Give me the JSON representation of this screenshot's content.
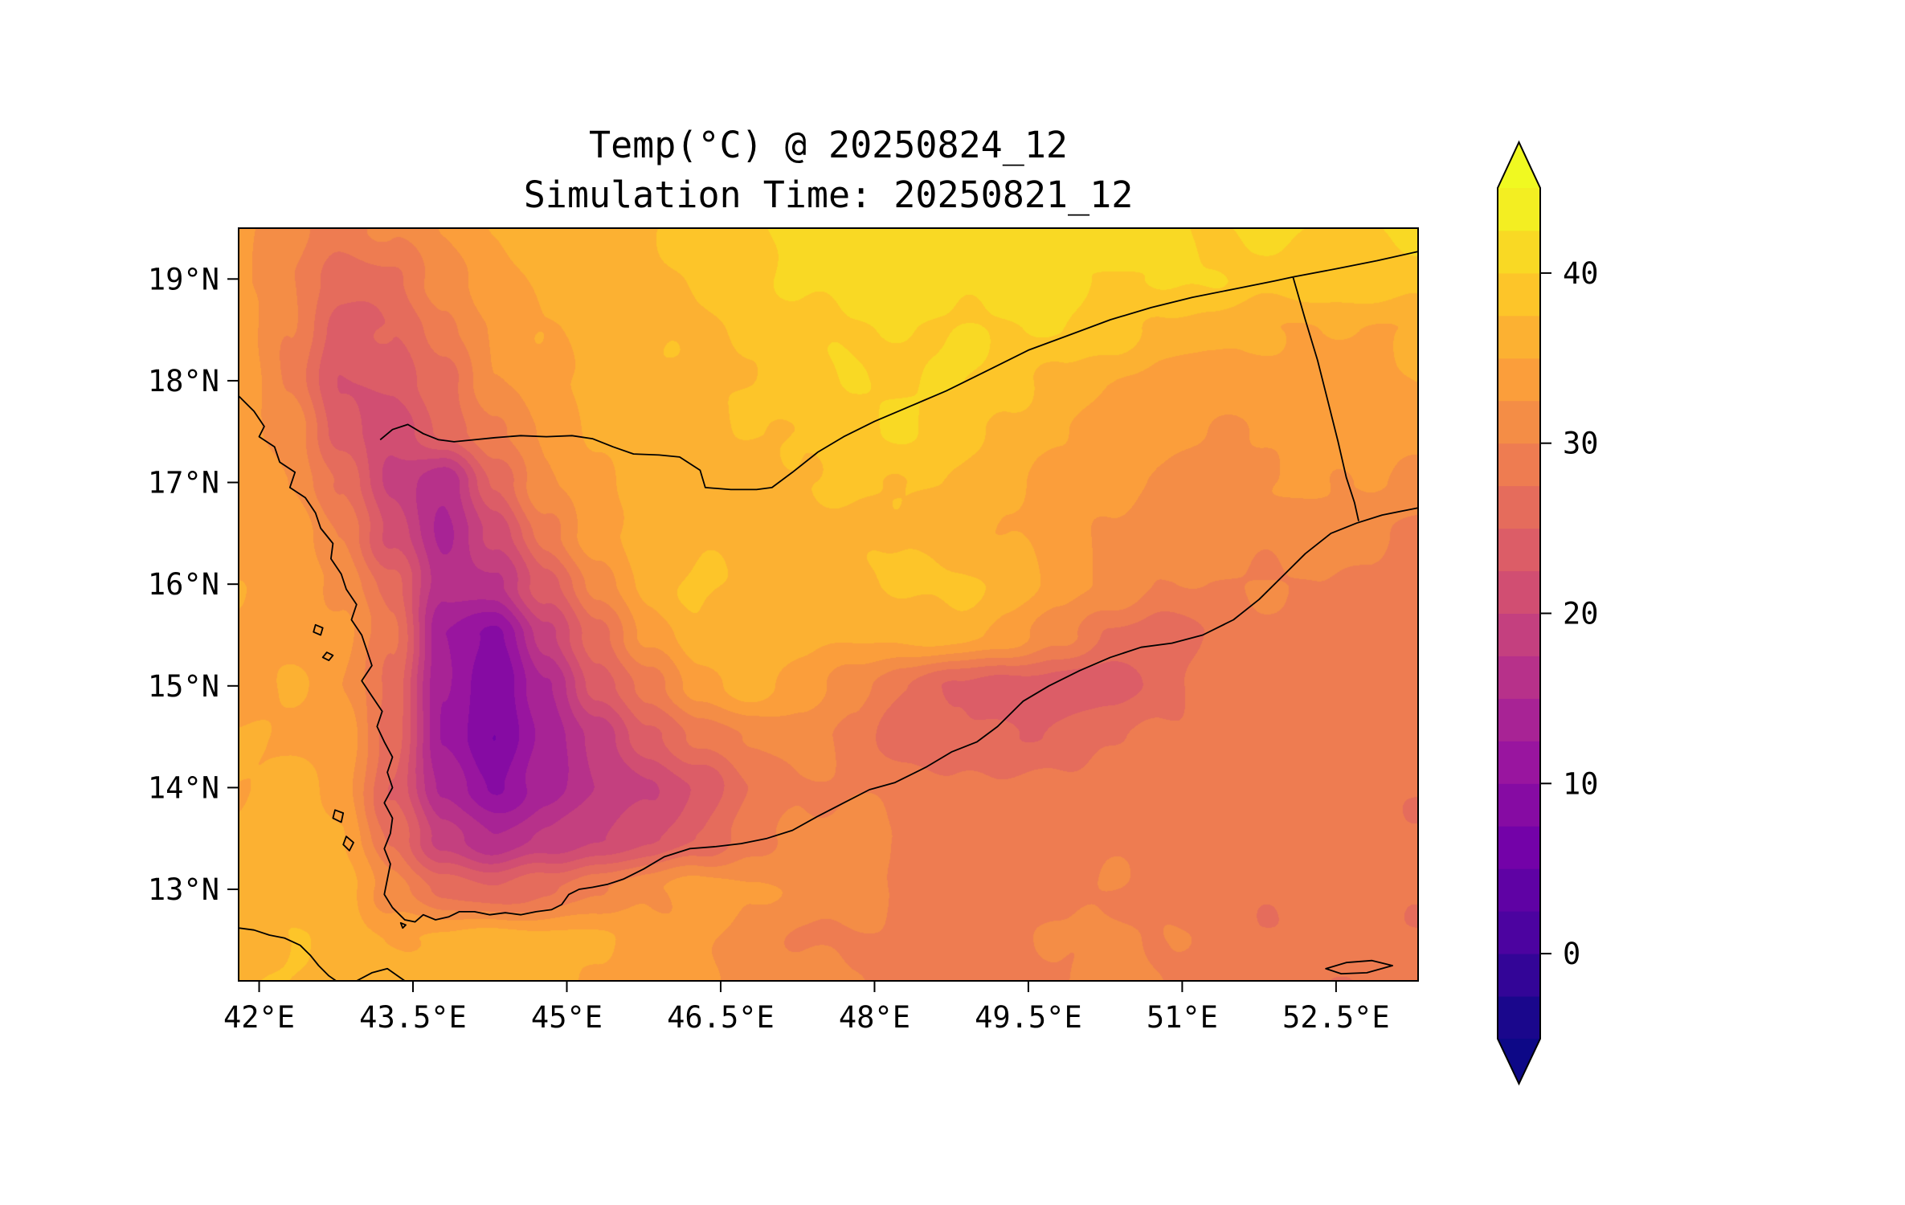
{
  "chart_data": {
    "type": "heatmap",
    "title": "Temp(°C) @ 20250824_12",
    "subtitle": "Simulation Time: 20250821_12",
    "variable": "Temperature",
    "units": "°C",
    "lon_range": [
      41.8,
      53.3
    ],
    "lat_range": [
      12.1,
      19.5
    ],
    "x_axis": {
      "ticks": [
        42,
        43.5,
        45,
        46.5,
        48,
        49.5,
        51,
        52.5
      ],
      "labels": [
        "42°E",
        "43.5°E",
        "45°E",
        "46.5°E",
        "48°E",
        "49.5°E",
        "51°E",
        "52.5°E"
      ]
    },
    "y_axis": {
      "ticks": [
        13,
        14,
        15,
        16,
        17,
        18,
        19
      ],
      "labels": [
        "13°N",
        "14°N",
        "15°N",
        "16°N",
        "17°N",
        "18°N",
        "19°N"
      ]
    },
    "colorbar": {
      "colormap": "plasma",
      "extend": "both",
      "vmin": -5,
      "vmax": 45,
      "band_step": 2.5,
      "tick_values": [
        40,
        30,
        20,
        10,
        0
      ],
      "tick_labels": [
        "40",
        "30",
        "20",
        "10",
        "0"
      ],
      "anchors": [
        "#0d0887",
        "#46039f",
        "#7201a8",
        "#9c179e",
        "#bd3786",
        "#d8576b",
        "#ed7953",
        "#fb9f3a",
        "#fdca26",
        "#f0f921"
      ]
    },
    "grid": {
      "lons": [
        41.8,
        42.3,
        42.8,
        43.3,
        43.8,
        44.3,
        44.8,
        45.3,
        45.8,
        46.3,
        46.8,
        47.3,
        47.8,
        48.3,
        48.8,
        49.3,
        49.8,
        50.3,
        50.8,
        51.3,
        51.8,
        52.3,
        52.8,
        53.3
      ],
      "lats": [
        19.5,
        19.0,
        18.5,
        18.0,
        17.5,
        17.0,
        16.5,
        16.0,
        15.5,
        15.0,
        14.5,
        14.0,
        13.5,
        13.0,
        12.5,
        12.1
      ],
      "temps": [
        [
          33,
          31,
          29,
          30,
          33,
          35,
          36,
          37,
          37,
          38,
          40,
          41,
          41,
          41,
          41,
          41,
          41,
          41,
          41,
          40,
          40,
          40,
          40,
          40
        ],
        [
          33,
          30,
          26,
          27,
          31,
          34,
          36,
          36,
          37,
          38,
          39,
          41,
          41,
          41,
          41,
          41,
          40,
          40,
          40,
          40,
          39,
          39,
          39,
          39
        ],
        [
          34,
          30,
          24,
          25,
          29,
          33,
          35,
          36,
          37,
          37,
          38,
          39,
          40,
          40,
          40,
          40,
          40,
          39,
          37,
          36,
          35,
          35,
          35,
          35
        ],
        [
          34,
          30,
          22,
          23,
          27,
          32,
          34,
          36,
          37,
          37,
          38,
          39,
          40,
          40,
          40,
          39,
          37,
          35,
          34,
          34,
          34,
          34,
          34,
          35
        ],
        [
          34,
          31,
          24,
          21,
          25,
          30,
          33,
          35,
          36,
          37,
          37,
          38,
          39,
          40,
          39,
          37,
          35,
          34,
          33,
          32,
          33,
          33,
          34,
          34
        ],
        [
          34,
          33,
          27,
          19,
          16,
          25,
          32,
          35,
          36,
          37,
          37,
          37,
          38,
          38,
          37,
          36,
          34,
          33,
          32,
          32,
          32,
          33,
          33,
          31
        ],
        [
          35,
          34,
          30,
          22,
          14,
          21,
          29,
          34,
          36,
          37,
          36,
          36,
          37,
          37,
          36,
          35,
          34,
          32,
          31,
          31,
          31,
          32,
          31,
          29
        ],
        [
          35,
          34,
          32,
          26,
          16,
          17,
          24,
          31,
          36,
          38,
          37,
          36,
          37,
          38,
          38,
          37,
          34,
          32,
          30,
          30,
          30,
          30,
          29,
          28
        ],
        [
          34,
          34,
          33,
          28,
          13,
          9,
          19,
          27,
          33,
          37,
          37,
          36,
          35,
          36,
          36,
          34,
          31,
          27,
          26,
          28,
          29,
          29,
          28,
          28
        ],
        [
          34,
          35,
          33,
          27,
          12,
          8,
          15,
          23,
          29,
          34,
          36,
          34,
          31,
          27,
          25,
          24,
          23,
          24,
          26,
          28,
          29,
          29,
          28,
          28
        ],
        [
          35,
          35,
          34,
          26,
          13,
          7,
          13,
          19,
          24,
          28,
          31,
          31,
          29,
          26,
          25,
          25,
          26,
          27,
          28,
          29,
          29,
          29,
          28,
          28
        ],
        [
          35,
          36,
          34,
          25,
          14,
          10,
          14,
          17,
          20,
          23,
          27,
          30,
          30,
          29,
          28,
          28,
          28,
          29,
          29,
          29,
          29,
          28,
          28,
          28
        ],
        [
          36,
          36,
          35,
          27,
          19,
          15,
          18,
          20,
          22,
          25,
          29,
          31,
          31,
          30,
          29,
          29,
          29,
          29,
          29,
          29,
          28,
          28,
          28,
          28
        ],
        [
          36,
          37,
          36,
          31,
          27,
          25,
          27,
          30,
          32,
          34,
          33,
          32,
          31,
          30,
          29,
          29,
          29,
          30,
          29,
          28,
          28,
          28,
          28,
          28
        ],
        [
          37,
          37,
          37,
          35,
          35,
          37,
          36,
          35,
          34,
          33,
          31,
          30,
          30,
          29,
          29,
          29,
          30,
          31,
          30,
          29,
          28,
          28,
          28,
          28
        ],
        [
          37,
          38,
          37,
          36,
          37,
          37,
          36,
          35,
          34,
          33,
          32,
          31,
          30,
          30,
          29,
          29,
          30,
          31,
          30,
          29,
          28,
          28,
          28,
          28
        ]
      ]
    },
    "overlays": {
      "coastlines": [
        [
          [
            41.8,
            17.85
          ],
          [
            41.95,
            17.7
          ],
          [
            42.05,
            17.55
          ],
          [
            42.0,
            17.45
          ],
          [
            42.15,
            17.35
          ],
          [
            42.2,
            17.2
          ],
          [
            42.35,
            17.1
          ],
          [
            42.3,
            16.95
          ],
          [
            42.45,
            16.85
          ],
          [
            42.55,
            16.7
          ],
          [
            42.6,
            16.55
          ],
          [
            42.72,
            16.4
          ],
          [
            42.7,
            16.25
          ],
          [
            42.8,
            16.1
          ],
          [
            42.85,
            15.95
          ],
          [
            42.95,
            15.8
          ],
          [
            42.9,
            15.65
          ],
          [
            43.0,
            15.5
          ],
          [
            43.05,
            15.35
          ],
          [
            43.1,
            15.2
          ],
          [
            43.0,
            15.05
          ],
          [
            43.1,
            14.9
          ],
          [
            43.2,
            14.75
          ],
          [
            43.15,
            14.6
          ],
          [
            43.22,
            14.45
          ],
          [
            43.3,
            14.3
          ],
          [
            43.25,
            14.15
          ],
          [
            43.3,
            14.0
          ],
          [
            43.22,
            13.85
          ],
          [
            43.3,
            13.7
          ],
          [
            43.28,
            13.55
          ],
          [
            43.22,
            13.4
          ],
          [
            43.28,
            13.25
          ],
          [
            43.25,
            13.1
          ],
          [
            43.22,
            12.95
          ],
          [
            43.3,
            12.82
          ],
          [
            43.42,
            12.7
          ],
          [
            43.52,
            12.68
          ],
          [
            43.6,
            12.75
          ],
          [
            43.72,
            12.7
          ],
          [
            43.85,
            12.73
          ],
          [
            43.95,
            12.78
          ],
          [
            44.1,
            12.78
          ],
          [
            44.25,
            12.75
          ],
          [
            44.4,
            12.77
          ],
          [
            44.55,
            12.75
          ],
          [
            44.7,
            12.78
          ],
          [
            44.85,
            12.8
          ],
          [
            44.95,
            12.85
          ],
          [
            45.02,
            12.95
          ],
          [
            45.12,
            13.0
          ],
          [
            45.25,
            13.02
          ],
          [
            45.4,
            13.05
          ],
          [
            45.55,
            13.1
          ],
          [
            45.75,
            13.2
          ],
          [
            45.95,
            13.32
          ],
          [
            46.2,
            13.4
          ],
          [
            46.45,
            13.42
          ],
          [
            46.7,
            13.45
          ],
          [
            46.95,
            13.5
          ],
          [
            47.2,
            13.58
          ],
          [
            47.45,
            13.72
          ],
          [
            47.7,
            13.85
          ],
          [
            47.95,
            13.98
          ],
          [
            48.2,
            14.05
          ],
          [
            48.5,
            14.2
          ],
          [
            48.75,
            14.35
          ],
          [
            49.0,
            14.45
          ],
          [
            49.2,
            14.6
          ],
          [
            49.45,
            14.85
          ],
          [
            49.7,
            15.0
          ],
          [
            50.0,
            15.15
          ],
          [
            50.3,
            15.28
          ],
          [
            50.6,
            15.38
          ],
          [
            50.9,
            15.42
          ],
          [
            51.2,
            15.5
          ],
          [
            51.5,
            15.65
          ],
          [
            51.75,
            15.85
          ],
          [
            52.0,
            16.1
          ],
          [
            52.2,
            16.3
          ],
          [
            52.45,
            16.5
          ],
          [
            52.7,
            16.6
          ],
          [
            52.95,
            16.68
          ],
          [
            53.2,
            16.73
          ],
          [
            53.3,
            16.75
          ]
        ],
        [
          [
            41.8,
            12.62
          ],
          [
            41.95,
            12.6
          ],
          [
            42.1,
            12.55
          ],
          [
            42.25,
            12.52
          ],
          [
            42.4,
            12.45
          ],
          [
            42.5,
            12.35
          ],
          [
            42.58,
            12.25
          ],
          [
            42.68,
            12.15
          ],
          [
            42.75,
            12.1
          ]
        ],
        [
          [
            42.95,
            12.1
          ],
          [
            43.1,
            12.18
          ],
          [
            43.25,
            12.22
          ],
          [
            43.35,
            12.15
          ],
          [
            43.42,
            12.1
          ]
        ]
      ],
      "islands": [
        [
          [
            42.55,
            15.6
          ],
          [
            42.62,
            15.57
          ],
          [
            42.6,
            15.5
          ],
          [
            42.53,
            15.53
          ]
        ],
        [
          [
            42.66,
            15.33
          ],
          [
            42.72,
            15.3
          ],
          [
            42.68,
            15.25
          ],
          [
            42.62,
            15.28
          ]
        ],
        [
          [
            42.74,
            13.78
          ],
          [
            42.82,
            13.75
          ],
          [
            42.8,
            13.66
          ],
          [
            42.72,
            13.7
          ]
        ],
        [
          [
            42.85,
            13.52
          ],
          [
            42.92,
            13.46
          ],
          [
            42.88,
            13.38
          ],
          [
            42.82,
            13.44
          ]
        ],
        [
          [
            43.38,
            12.67
          ],
          [
            43.43,
            12.65
          ],
          [
            43.4,
            12.62
          ]
        ],
        [
          [
            52.4,
            12.22
          ],
          [
            52.6,
            12.28
          ],
          [
            52.85,
            12.3
          ],
          [
            53.05,
            12.25
          ],
          [
            52.8,
            12.18
          ],
          [
            52.55,
            12.17
          ]
        ]
      ],
      "borders": [
        [
          [
            43.18,
            17.42
          ],
          [
            43.3,
            17.52
          ],
          [
            43.45,
            17.57
          ],
          [
            43.6,
            17.48
          ],
          [
            43.75,
            17.42
          ],
          [
            43.9,
            17.4
          ],
          [
            44.1,
            17.42
          ],
          [
            44.3,
            17.44
          ],
          [
            44.55,
            17.46
          ],
          [
            44.8,
            17.45
          ],
          [
            45.05,
            17.46
          ],
          [
            45.25,
            17.43
          ],
          [
            45.45,
            17.35
          ],
          [
            45.65,
            17.28
          ],
          [
            45.9,
            17.27
          ],
          [
            46.1,
            17.25
          ],
          [
            46.3,
            17.12
          ],
          [
            46.35,
            16.95
          ],
          [
            46.6,
            16.93
          ],
          [
            46.85,
            16.93
          ],
          [
            47.0,
            16.95
          ],
          [
            47.2,
            17.1
          ],
          [
            47.45,
            17.3
          ],
          [
            47.7,
            17.45
          ],
          [
            48.0,
            17.6
          ],
          [
            48.35,
            17.75
          ],
          [
            48.7,
            17.9
          ],
          [
            49.1,
            18.1
          ],
          [
            49.5,
            18.3
          ],
          [
            49.9,
            18.45
          ],
          [
            50.3,
            18.6
          ],
          [
            50.7,
            18.72
          ],
          [
            51.1,
            18.82
          ],
          [
            51.5,
            18.9
          ],
          [
            51.9,
            18.98
          ],
          [
            52.08,
            19.02
          ]
        ],
        [
          [
            52.08,
            19.02
          ],
          [
            52.5,
            19.1
          ],
          [
            52.9,
            19.18
          ],
          [
            53.3,
            19.27
          ]
        ],
        [
          [
            52.08,
            19.02
          ],
          [
            52.2,
            18.6
          ],
          [
            52.32,
            18.2
          ],
          [
            52.42,
            17.8
          ],
          [
            52.52,
            17.4
          ],
          [
            52.6,
            17.05
          ],
          [
            52.68,
            16.8
          ],
          [
            52.72,
            16.62
          ]
        ]
      ]
    }
  }
}
